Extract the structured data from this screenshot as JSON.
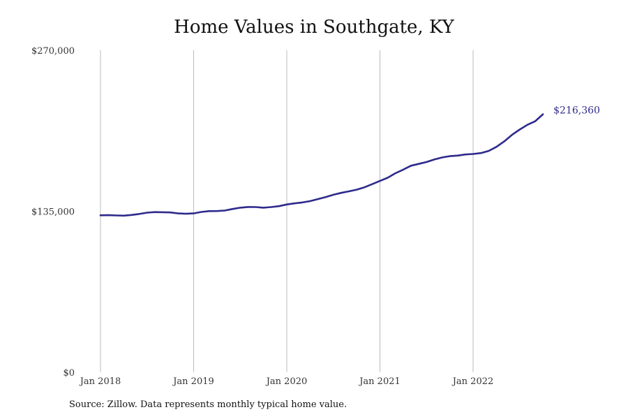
{
  "chart_data": {
    "type": "line",
    "title": "Home Values in Southgate, KY",
    "xlabel": "",
    "ylabel": "",
    "x_ticks": [
      "Jan 2018",
      "Jan 2019",
      "Jan 2020",
      "Jan 2021",
      "Jan 2022"
    ],
    "y_ticks": [
      "$270,000",
      "$135,000",
      "$0"
    ],
    "ylim": [
      0,
      270000
    ],
    "x_range": [
      "2018-01",
      "2022-10"
    ],
    "grid": "vertical",
    "line_color": "#2e2a8c",
    "gridline_color": "#bbbbbb",
    "series": [
      {
        "x": [
          "2018-01",
          "2018-02",
          "2018-03",
          "2018-04",
          "2018-05",
          "2018-06",
          "2018-07",
          "2018-08",
          "2018-09",
          "2018-10",
          "2018-11",
          "2018-12",
          "2019-01",
          "2019-02",
          "2019-03",
          "2019-04",
          "2019-05",
          "2019-06",
          "2019-07",
          "2019-08",
          "2019-09",
          "2019-10",
          "2019-11",
          "2019-12",
          "2020-01",
          "2020-02",
          "2020-03",
          "2020-04",
          "2020-05",
          "2020-06",
          "2020-07",
          "2020-08",
          "2020-09",
          "2020-10",
          "2020-11",
          "2020-12",
          "2021-01",
          "2021-02",
          "2021-03",
          "2021-04",
          "2021-05",
          "2021-06",
          "2021-07",
          "2021-08",
          "2021-09",
          "2021-10",
          "2021-11",
          "2021-12",
          "2022-01",
          "2022-02",
          "2022-03",
          "2022-04",
          "2022-05",
          "2022-06",
          "2022-07",
          "2022-08",
          "2022-09",
          "2022-10"
        ],
        "values": [
          131600,
          131700,
          131500,
          131300,
          131900,
          132700,
          133800,
          134300,
          134200,
          134000,
          133200,
          132900,
          133200,
          134400,
          135100,
          135200,
          135600,
          136900,
          138000,
          138600,
          138500,
          138000,
          138500,
          139300,
          140700,
          141600,
          142400,
          143500,
          145200,
          146900,
          148800,
          150400,
          151700,
          153100,
          155100,
          157700,
          160400,
          163100,
          166900,
          169900,
          173200,
          174700,
          176300,
          178400,
          180100,
          181200,
          181700,
          182600,
          183000,
          183800,
          185600,
          189000,
          193500,
          199000,
          203500,
          207500,
          210500,
          216360
        ]
      }
    ],
    "end_label": "$216,360",
    "source": "Source: Zillow. Data represents monthly typical home value."
  }
}
